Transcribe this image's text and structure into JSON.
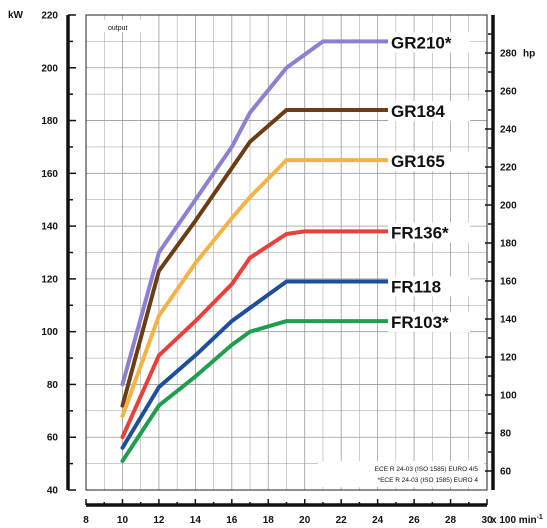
{
  "chart_data": {
    "type": "line",
    "left_axis_unit": "kW",
    "right_axis_unit": "hp",
    "x_axis_unit": "x 100 min",
    "x_axis_unit_superscript": "-1",
    "inner_label": "output",
    "xlim": [
      8,
      30
    ],
    "ylim": [
      40,
      220
    ],
    "hp_lim": [
      50,
      300
    ],
    "x_ticks": [
      "8",
      "10",
      "12",
      "14",
      "16",
      "18",
      "20",
      "22",
      "24",
      "26",
      "28",
      "30"
    ],
    "y_ticks": [
      "40",
      "60",
      "80",
      "100",
      "120",
      "140",
      "160",
      "180",
      "200",
      "220"
    ],
    "hp_ticks": [
      "60",
      "80",
      "100",
      "120",
      "140",
      "160",
      "180",
      "200",
      "220",
      "240",
      "260",
      "280"
    ],
    "grid": true,
    "series": [
      {
        "name": "GR210*",
        "color": "#8f7fd0",
        "x": [
          10,
          12,
          14,
          16,
          17,
          19,
          21,
          25
        ],
        "y": [
          80,
          130,
          150,
          170,
          183,
          200,
          210,
          210
        ]
      },
      {
        "name": "GR184",
        "color": "#6b3d14",
        "x": [
          10,
          12,
          14,
          16,
          17,
          19,
          25
        ],
        "y": [
          72,
          123,
          142,
          162,
          172,
          184,
          184
        ]
      },
      {
        "name": "GR165",
        "color": "#f5b347",
        "x": [
          10,
          12,
          14,
          16,
          17,
          19,
          25
        ],
        "y": [
          68,
          106,
          126,
          143,
          151,
          165,
          165
        ]
      },
      {
        "name": "FR136*",
        "color": "#e8403b",
        "x": [
          10,
          12,
          14,
          16,
          17,
          19,
          20,
          25
        ],
        "y": [
          60,
          91,
          104,
          118,
          128,
          137,
          138,
          138
        ]
      },
      {
        "name": "FR118",
        "color": "#1f4f9c",
        "x": [
          10,
          12,
          14,
          16,
          17,
          19,
          25
        ],
        "y": [
          56,
          79,
          91,
          104,
          109,
          119,
          119
        ]
      },
      {
        "name": "FR103*",
        "color": "#1e9e4e",
        "x": [
          10,
          12,
          14,
          16,
          17,
          19,
          25
        ],
        "y": [
          51,
          72,
          83,
          95,
          100,
          104,
          104
        ]
      }
    ],
    "notes": [
      "ECE R 24-03 (ISO 1585) EURO 4/5",
      "*ECE R 24-03 (ISO 1585) EURO 4"
    ]
  }
}
